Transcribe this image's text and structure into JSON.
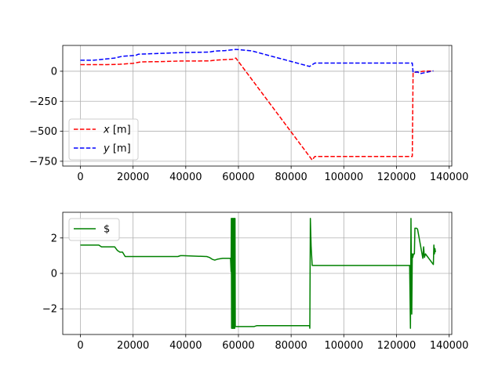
{
  "chart_data": [
    {
      "type": "line",
      "title": "",
      "xlabel": "",
      "ylabel": "",
      "xlim": [
        -6700,
        141000
      ],
      "ylim": [
        -790,
        215
      ],
      "xticks": [
        0,
        20000,
        40000,
        60000,
        80000,
        100000,
        120000,
        140000
      ],
      "xtick_labels": [
        "0",
        "20000",
        "40000",
        "60000",
        "80000",
        "100000",
        "120000",
        "140000"
      ],
      "yticks": [
        -750,
        -500,
        -250,
        0
      ],
      "ytick_labels": [
        "−750",
        "−500",
        "−250",
        "0"
      ],
      "grid": true,
      "legend_position": "center-left",
      "series": [
        {
          "name_italic": "x",
          "name_rest": " [m]",
          "color": "#ff0000",
          "style": "dashed",
          "x": [
            0,
            10000,
            15000,
            20000,
            23000,
            30000,
            38000,
            49000,
            51000,
            55000,
            58000,
            59000,
            88000,
            89000,
            100000,
            126000,
            126300,
            129000,
            130000,
            134000
          ],
          "y": [
            55,
            55,
            58,
            66,
            78,
            80,
            85,
            86,
            92,
            97,
            100,
            110,
            -740,
            -710,
            -710,
            -710,
            -10,
            -5,
            0,
            3
          ]
        },
        {
          "name_italic": "y",
          "name_rest": " [m]",
          "color": "#0000ff",
          "style": "dashed",
          "x": [
            0,
            5000,
            8000,
            13000,
            16000,
            21000,
            22000,
            38000,
            49000,
            51000,
            55000,
            59000,
            65000,
            87000,
            89000,
            100000,
            126000,
            126300,
            128000,
            129000,
            134000
          ],
          "y": [
            92,
            92,
            98,
            110,
            125,
            132,
            142,
            155,
            160,
            168,
            172,
            182,
            170,
            40,
            68,
            68,
            68,
            -10,
            -5,
            -20,
            3
          ]
        }
      ]
    },
    {
      "type": "line",
      "title": "",
      "xlabel": "",
      "ylabel": "",
      "xlim": [
        -6700,
        141000
      ],
      "ylim": [
        -3.45,
        3.45
      ],
      "xticks": [
        0,
        20000,
        40000,
        60000,
        80000,
        100000,
        120000,
        140000
      ],
      "xtick_labels": [
        "0",
        "20000",
        "40000",
        "60000",
        "80000",
        "100000",
        "120000",
        "140000"
      ],
      "yticks": [
        -2,
        0,
        2
      ],
      "ytick_labels": [
        "−2",
        "0",
        "2"
      ],
      "grid": true,
      "legend_position": "upper-left",
      "series": [
        {
          "name": "$",
          "color": "#008000",
          "style": "solid",
          "x": [
            0,
            7000,
            8000,
            13000,
            14000,
            15000,
            16000,
            17000,
            37000,
            38000,
            39000,
            48000,
            49000,
            50000,
            51000,
            52000,
            54000,
            57000,
            57200,
            57300,
            57400,
            57500,
            57600,
            57700,
            57800,
            57900,
            58000,
            58100,
            58200,
            58300,
            58400,
            58500,
            58600,
            58700,
            58800,
            60000,
            66000,
            67000,
            87000,
            87100,
            87300,
            87600,
            88000,
            90000,
            100000,
            120000,
            125000,
            125300,
            125500,
            125800,
            126000,
            126200,
            126500,
            126800,
            127000,
            127300,
            127600,
            128000,
            130000,
            130300,
            130600,
            131000,
            134000,
            134200,
            134400,
            134600,
            134800
          ],
          "y": [
            1.6,
            1.6,
            1.5,
            1.5,
            1.3,
            1.2,
            1.2,
            0.95,
            0.95,
            1.0,
            1.0,
            0.95,
            0.9,
            0.8,
            0.75,
            0.8,
            0.85,
            0.85,
            0.1,
            3.1,
            -3.1,
            3.1,
            -3.1,
            3.1,
            -3.1,
            3.1,
            -3.1,
            3.1,
            -3.1,
            3.1,
            -3.1,
            3.1,
            -3.1,
            3.1,
            -3.0,
            -3.0,
            -3.0,
            -2.95,
            -2.95,
            -3.1,
            3.1,
            1.5,
            0.45,
            0.45,
            0.45,
            0.45,
            0.45,
            -3.1,
            3.1,
            -2.3,
            1.1,
            0.9,
            1.1,
            1.1,
            2.55,
            2.55,
            2.55,
            2.5,
            0.85,
            1.5,
            0.9,
            1.1,
            0.5,
            1.6,
            1.1,
            1.4,
            1.2
          ]
        }
      ]
    }
  ]
}
